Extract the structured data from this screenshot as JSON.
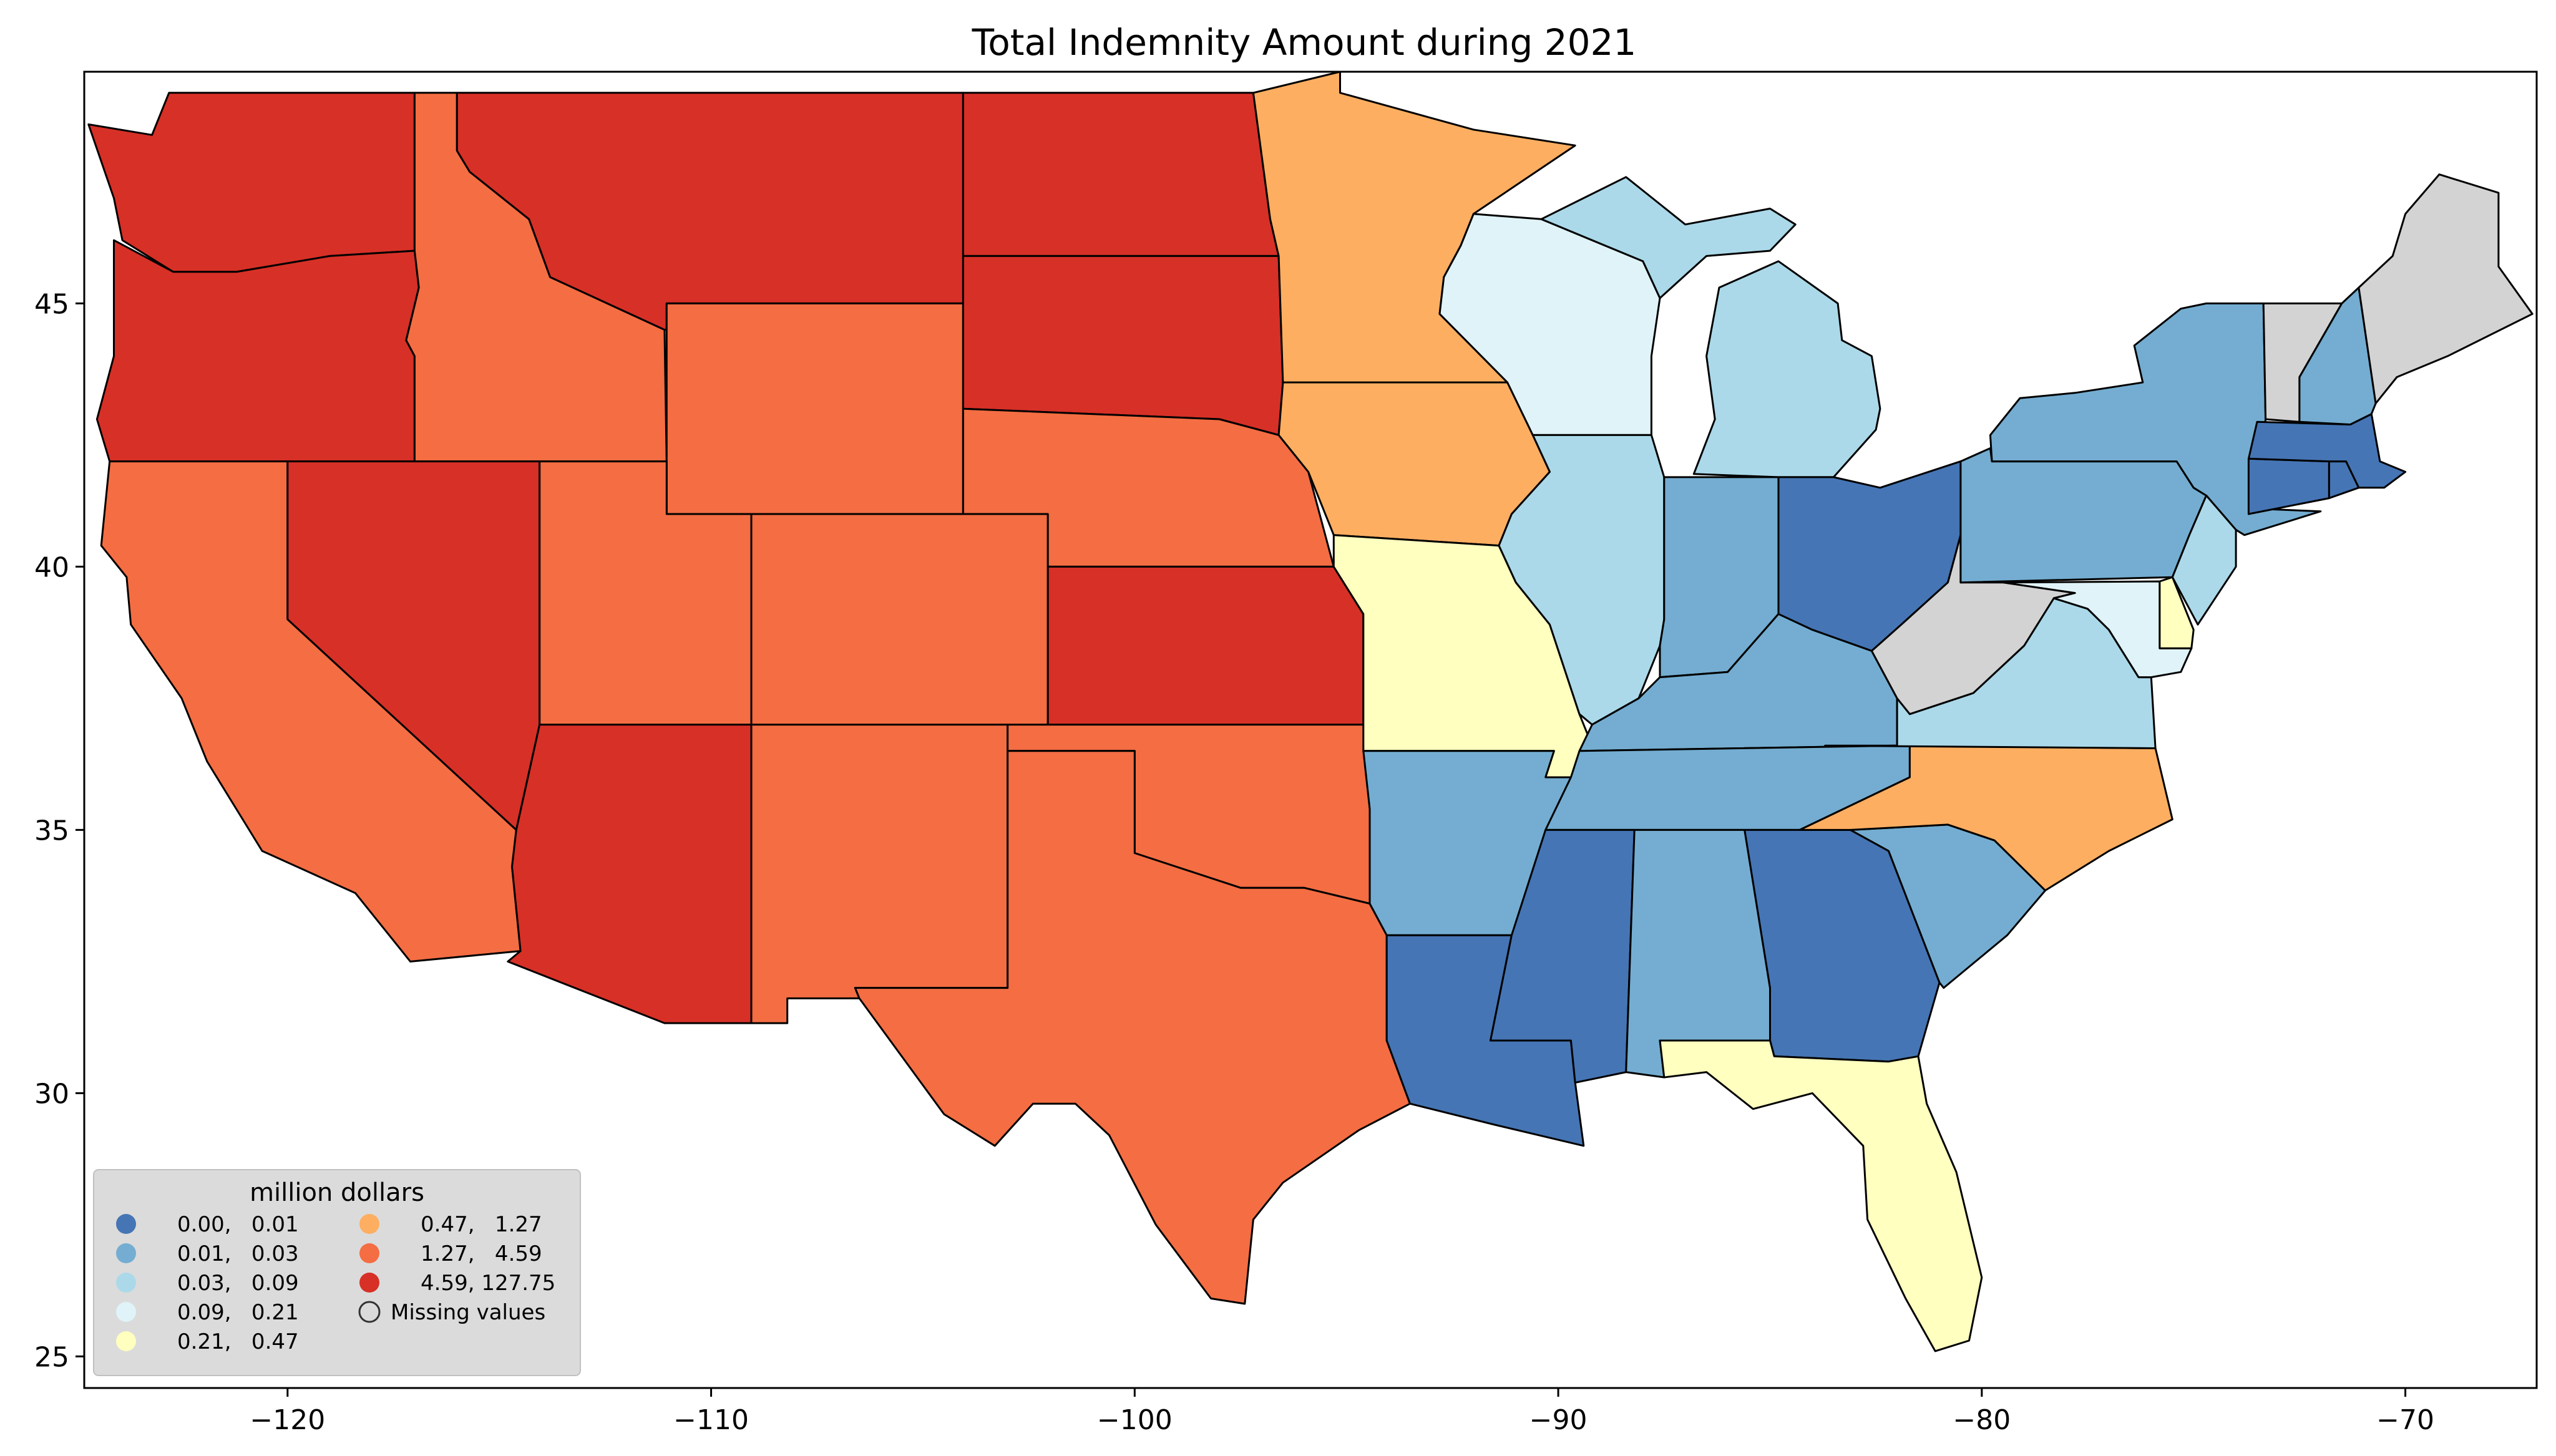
{
  "title": "Total Indemnity Amount during 2021",
  "axes": {
    "x_ticks": [
      {
        "value": -120,
        "label": "−120"
      },
      {
        "value": -110,
        "label": "−110"
      },
      {
        "value": -100,
        "label": "−100"
      },
      {
        "value": -90,
        "label": "−90"
      },
      {
        "value": -80,
        "label": "−80"
      },
      {
        "value": -70,
        "label": "−70"
      }
    ],
    "y_ticks": [
      {
        "value": 25,
        "label": "25"
      },
      {
        "value": 30,
        "label": "30"
      },
      {
        "value": 35,
        "label": "35"
      },
      {
        "value": 40,
        "label": "40"
      },
      {
        "value": 45,
        "label": "45"
      }
    ],
    "xlim": [
      -124.8,
      -66.9
    ],
    "ylim": [
      24.4,
      49.4
    ]
  },
  "legend": {
    "title": "million dollars",
    "placement": "lower-left",
    "items": [
      {
        "label": "0.00,   0.01",
        "color": "#4575b4"
      },
      {
        "label": "0.01,   0.03",
        "color": "#74add1"
      },
      {
        "label": "0.03,   0.09",
        "color": "#abd9e9"
      },
      {
        "label": "0.09,   0.21",
        "color": "#e0f3f8"
      },
      {
        "label": "0.21,   0.47",
        "color": "#ffffbf"
      },
      {
        "label": "0.47,   1.27",
        "color": "#fdae61"
      },
      {
        "label": "1.27,   4.59",
        "color": "#f46d43"
      },
      {
        "label": "4.59, 127.75",
        "color": "#d73027"
      },
      {
        "label": "Missing values",
        "color": "#d3d3d3"
      }
    ]
  },
  "chart_data": {
    "type": "choropleth",
    "title": "Total Indemnity Amount during 2021",
    "xlabel": "",
    "ylabel": "",
    "xlim": [
      -124.8,
      -66.9
    ],
    "ylim": [
      24.4,
      49.4
    ],
    "x_ticks": [
      -120,
      -110,
      -100,
      -90,
      -80,
      -70
    ],
    "y_ticks": [
      25,
      30,
      35,
      40,
      45
    ],
    "grid": false,
    "legend_title": "million dollars",
    "legend_placement": "lower-left",
    "bins": [
      {
        "range": "0.00, 0.01",
        "min": 0.0,
        "max": 0.01,
        "color": "#4575b4"
      },
      {
        "range": "0.01, 0.03",
        "min": 0.01,
        "max": 0.03,
        "color": "#74add1"
      },
      {
        "range": "0.03, 0.09",
        "min": 0.03,
        "max": 0.09,
        "color": "#abd9e9"
      },
      {
        "range": "0.09, 0.21",
        "min": 0.09,
        "max": 0.21,
        "color": "#e0f3f8"
      },
      {
        "range": "0.21, 0.47",
        "min": 0.21,
        "max": 0.47,
        "color": "#ffffbf"
      },
      {
        "range": "0.47, 1.27",
        "min": 0.47,
        "max": 1.27,
        "color": "#fdae61"
      },
      {
        "range": "1.27, 4.59",
        "min": 1.27,
        "max": 4.59,
        "color": "#f46d43"
      },
      {
        "range": "4.59, 127.75",
        "min": 4.59,
        "max": 127.75,
        "color": "#d73027"
      }
    ],
    "missing_color": "#d3d3d3",
    "regions": [
      {
        "name": "WA",
        "bin": 7
      },
      {
        "name": "OR",
        "bin": 7
      },
      {
        "name": "CA",
        "bin": 6
      },
      {
        "name": "ID",
        "bin": 6
      },
      {
        "name": "NV",
        "bin": 7
      },
      {
        "name": "MT",
        "bin": 7
      },
      {
        "name": "WY",
        "bin": 6
      },
      {
        "name": "UT",
        "bin": 6
      },
      {
        "name": "AZ",
        "bin": 7
      },
      {
        "name": "CO",
        "bin": 6
      },
      {
        "name": "NM",
        "bin": 6
      },
      {
        "name": "ND",
        "bin": 7
      },
      {
        "name": "SD",
        "bin": 7
      },
      {
        "name": "NE",
        "bin": 6
      },
      {
        "name": "KS",
        "bin": 7
      },
      {
        "name": "OK",
        "bin": 6
      },
      {
        "name": "TX",
        "bin": 6
      },
      {
        "name": "MN",
        "bin": 5
      },
      {
        "name": "IA",
        "bin": 5
      },
      {
        "name": "MO",
        "bin": 4
      },
      {
        "name": "AR",
        "bin": 1
      },
      {
        "name": "LA",
        "bin": 0
      },
      {
        "name": "WI",
        "bin": 3
      },
      {
        "name": "IL",
        "bin": 2
      },
      {
        "name": "MI",
        "bin": 2
      },
      {
        "name": "IN",
        "bin": 1
      },
      {
        "name": "OH",
        "bin": 0
      },
      {
        "name": "KY",
        "bin": 1
      },
      {
        "name": "TN",
        "bin": 1
      },
      {
        "name": "MS",
        "bin": 0
      },
      {
        "name": "AL",
        "bin": 1
      },
      {
        "name": "GA",
        "bin": 0
      },
      {
        "name": "FL",
        "bin": 4
      },
      {
        "name": "SC",
        "bin": 1
      },
      {
        "name": "NC",
        "bin": 5
      },
      {
        "name": "VA",
        "bin": 2
      },
      {
        "name": "WV",
        "bin": 8
      },
      {
        "name": "PA",
        "bin": 1
      },
      {
        "name": "NY",
        "bin": 1
      },
      {
        "name": "MD",
        "bin": 3
      },
      {
        "name": "DE",
        "bin": 4
      },
      {
        "name": "NJ",
        "bin": 2
      },
      {
        "name": "CT",
        "bin": 0
      },
      {
        "name": "RI",
        "bin": 0
      },
      {
        "name": "MA",
        "bin": 0
      },
      {
        "name": "VT",
        "bin": 8
      },
      {
        "name": "NH",
        "bin": 1
      },
      {
        "name": "ME",
        "bin": 8
      }
    ]
  }
}
